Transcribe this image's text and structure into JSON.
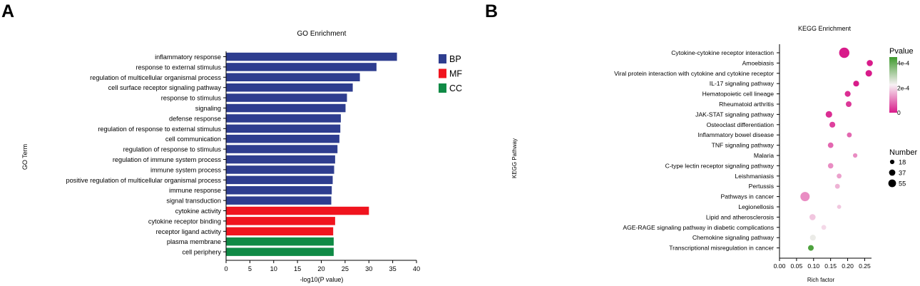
{
  "panels": {
    "a": {
      "letter": "A"
    },
    "b": {
      "letter": "B"
    }
  },
  "chart_data": [
    {
      "type": "bar",
      "orientation": "horizontal",
      "title": "GO Enrichment",
      "xlabel": "-log10(P value)",
      "ylabel": "GO Term",
      "xlim": [
        0,
        40
      ],
      "xticks": [
        0,
        5,
        10,
        15,
        20,
        25,
        30,
        35,
        40
      ],
      "grid": false,
      "legend_position": "top-right",
      "legend": [
        {
          "label": "BP",
          "color": "#2E3D8F"
        },
        {
          "label": "MF",
          "color": "#F0141E"
        },
        {
          "label": "CC",
          "color": "#0F8A45"
        }
      ],
      "bars": [
        {
          "term": "inflammatory response",
          "value": 35.9,
          "category": "BP"
        },
        {
          "term": "response to external stimulus",
          "value": 31.6,
          "category": "BP"
        },
        {
          "term": "regulation of multicellular organismal process",
          "value": 28.1,
          "category": "BP"
        },
        {
          "term": "cell surface receptor signaling pathway",
          "value": 26.6,
          "category": "BP"
        },
        {
          "term": "response to stimulus",
          "value": 25.4,
          "category": "BP"
        },
        {
          "term": "signaling",
          "value": 25.1,
          "category": "BP"
        },
        {
          "term": "defense response",
          "value": 24.1,
          "category": "BP"
        },
        {
          "term": "regulation of response to external stimulus",
          "value": 24.0,
          "category": "BP"
        },
        {
          "term": "cell communication",
          "value": 23.8,
          "category": "BP"
        },
        {
          "term": "regulation of response to stimulus",
          "value": 23.4,
          "category": "BP"
        },
        {
          "term": "regulation of immune system process",
          "value": 22.9,
          "category": "BP"
        },
        {
          "term": "immune system process",
          "value": 22.7,
          "category": "BP"
        },
        {
          "term": "positive regulation of multicellular organismal process",
          "value": 22.4,
          "category": "BP"
        },
        {
          "term": "immune response",
          "value": 22.2,
          "category": "BP"
        },
        {
          "term": "signal transduction",
          "value": 22.1,
          "category": "BP"
        },
        {
          "term": "cytokine activity",
          "value": 30.0,
          "category": "MF"
        },
        {
          "term": "cytokine receptor binding",
          "value": 22.9,
          "category": "MF"
        },
        {
          "term": "receptor ligand activity",
          "value": 22.5,
          "category": "MF"
        },
        {
          "term": "plasma membrane",
          "value": 22.6,
          "category": "CC"
        },
        {
          "term": "cell periphery",
          "value": 22.6,
          "category": "CC"
        }
      ]
    },
    {
      "type": "scatter",
      "title": "KEGG Enrichment",
      "xlabel": "Rich factor",
      "ylabel": "KEGG Pathway",
      "xlim": [
        0,
        0.27
      ],
      "xticks": [
        "0.00",
        "0.05",
        "0.10",
        "0.15",
        "0.20",
        "0.25"
      ],
      "grid": false,
      "color_legend": {
        "title": "Pvalue",
        "ticks": [
          {
            "label": "4e-4",
            "value": 0.0004
          },
          {
            "label": "2e-4",
            "value": 0.0002
          },
          {
            "label": "0",
            "value": 0
          }
        ],
        "range": [
          0,
          0.00045
        ],
        "colors": [
          "#D81B8A",
          "#F7F1F4",
          "#3E9A2C"
        ]
      },
      "size_legend": {
        "title": "Number",
        "entries": [
          {
            "label": "18",
            "value": 18
          },
          {
            "label": "37",
            "value": 37
          },
          {
            "label": "55",
            "value": 55
          }
        ]
      },
      "points": [
        {
          "pathway": "Cytokine-cytokine receptor interaction",
          "rich_factor": 0.19,
          "count": 55,
          "pvalue": 0.0
        },
        {
          "pathway": "Amoebiasis",
          "rich_factor": 0.265,
          "count": 20,
          "pvalue": 0.0
        },
        {
          "pathway": "Viral protein interaction with cytokine and cytokine receptor",
          "rich_factor": 0.262,
          "count": 22,
          "pvalue": 0.0
        },
        {
          "pathway": "IL-17 signaling pathway",
          "rich_factor": 0.225,
          "count": 18,
          "pvalue": 0.0
        },
        {
          "pathway": "Hematopoietic cell lineage",
          "rich_factor": 0.2,
          "count": 18,
          "pvalue": 2e-05
        },
        {
          "pathway": "Rheumatoid arthritis",
          "rich_factor": 0.203,
          "count": 17,
          "pvalue": 3e-05
        },
        {
          "pathway": "JAK-STAT signaling pathway",
          "rich_factor": 0.145,
          "count": 22,
          "pvalue": 2e-05
        },
        {
          "pathway": "Osteoclast differentiation",
          "rich_factor": 0.155,
          "count": 18,
          "pvalue": 4e-05
        },
        {
          "pathway": "Inflammatory bowel disease",
          "rich_factor": 0.205,
          "count": 12,
          "pvalue": 8e-05
        },
        {
          "pathway": "TNF signaling pathway",
          "rich_factor": 0.15,
          "count": 16,
          "pvalue": 8e-05
        },
        {
          "pathway": "Malaria",
          "rich_factor": 0.222,
          "count": 10,
          "pvalue": 0.00012
        },
        {
          "pathway": "C-type lectin receptor signaling pathway",
          "rich_factor": 0.15,
          "count": 15,
          "pvalue": 0.00012
        },
        {
          "pathway": "Leishmaniasis",
          "rich_factor": 0.175,
          "count": 12,
          "pvalue": 0.00014
        },
        {
          "pathway": "Pertussis",
          "rich_factor": 0.17,
          "count": 12,
          "pvalue": 0.00016
        },
        {
          "pathway": "Pathways in cancer",
          "rich_factor": 0.075,
          "count": 45,
          "pvalue": 0.00012
        },
        {
          "pathway": "Legionellosis",
          "rich_factor": 0.175,
          "count": 9,
          "pvalue": 0.00018
        },
        {
          "pathway": "Lipid and atherosclerosis",
          "rich_factor": 0.097,
          "count": 20,
          "pvalue": 0.00018
        },
        {
          "pathway": "AGE-RAGE signaling pathway in diabetic complications",
          "rich_factor": 0.13,
          "count": 12,
          "pvalue": 0.0002
        },
        {
          "pathway": "Chemokine signaling pathway",
          "rich_factor": 0.098,
          "count": 18,
          "pvalue": 0.00024
        },
        {
          "pathway": "Transcriptional misregulation in cancer",
          "rich_factor": 0.092,
          "count": 17,
          "pvalue": 0.00043
        }
      ]
    }
  ]
}
